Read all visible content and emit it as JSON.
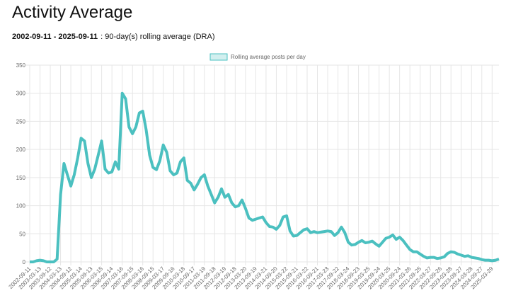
{
  "chart_data": {
    "type": "line",
    "title": "Activity Average",
    "subtitle": {
      "range": "2002-09-11 - 2025-09-11",
      "description": ": 90-day(s) rolling average (DRA)"
    },
    "categories": [
      "2002-09-11",
      null,
      null,
      "2003-03-13",
      null,
      null,
      "2003-09-12",
      null,
      null,
      "2004-03-13",
      null,
      null,
      "2004-09-12",
      null,
      null,
      "2005-03-14",
      null,
      null,
      "2005-09-13",
      null,
      null,
      "2006-03-15",
      null,
      null,
      "2006-09-14",
      null,
      null,
      "2007-03-16",
      null,
      null,
      "2007-09-15",
      null,
      null,
      "2008-03-16",
      null,
      null,
      "2008-09-15",
      null,
      null,
      "2009-03-17",
      null,
      null,
      "2009-09-16",
      null,
      null,
      "2010-03-18",
      null,
      null,
      "2010-09-17",
      null,
      null,
      "2011-03-19",
      null,
      null,
      "2011-09-18",
      null,
      null,
      "2012-03-19",
      null,
      null,
      "2012-09-18",
      null,
      null,
      "2013-03-20",
      null,
      null,
      "2013-09-19",
      null,
      null,
      "2014-03-21",
      null,
      null,
      "2014-09-20",
      null,
      null,
      "2015-03-22",
      null,
      null,
      "2015-09-21",
      null,
      null,
      "2016-03-22",
      null,
      null,
      "2016-09-21",
      null,
      null,
      "2017-03-23",
      null,
      null,
      "2017-09-22",
      null,
      null,
      "2018-03-24",
      null,
      null,
      "2018-09-23",
      null,
      null,
      "2019-03-25",
      null,
      null,
      "2019-09-24",
      null,
      null,
      "2020-03-25",
      null,
      null,
      "2020-09-24",
      null,
      null,
      "2021-03-26",
      null,
      null,
      "2021-09-25",
      null,
      null,
      "2022-03-27",
      null,
      null,
      "2022-09-26",
      null,
      null,
      "2023-03-28",
      null,
      null,
      "2023-09-27",
      null,
      null,
      "2024-03-28",
      null,
      null,
      "2024-09-27",
      null,
      null,
      "2025-03-29",
      null,
      null
    ],
    "series": [
      {
        "name": "Rolling average posts per day",
        "color": "#4bc0c0",
        "values": [
          0,
          0,
          2,
          3,
          2,
          0,
          0,
          0,
          5,
          120,
          175,
          155,
          135,
          155,
          185,
          220,
          215,
          175,
          150,
          165,
          190,
          215,
          165,
          158,
          160,
          178,
          165,
          300,
          290,
          240,
          228,
          240,
          265,
          268,
          235,
          190,
          168,
          164,
          180,
          208,
          195,
          162,
          155,
          158,
          178,
          185,
          145,
          140,
          128,
          138,
          150,
          155,
          135,
          120,
          105,
          115,
          130,
          115,
          120,
          105,
          98,
          100,
          110,
          95,
          78,
          74,
          76,
          78,
          80,
          70,
          63,
          62,
          58,
          65,
          80,
          82,
          55,
          46,
          47,
          52,
          57,
          59,
          52,
          54,
          52,
          53,
          54,
          55,
          54,
          47,
          52,
          62,
          52,
          35,
          30,
          31,
          35,
          38,
          34,
          35,
          37,
          32,
          28,
          35,
          42,
          44,
          48,
          40,
          44,
          38,
          30,
          22,
          18,
          18,
          14,
          10,
          7,
          8,
          8,
          6,
          7,
          9,
          15,
          18,
          17,
          14,
          12,
          10,
          11,
          8,
          7,
          6,
          4,
          3,
          3,
          2,
          3,
          5
        ]
      }
    ],
    "ylim": [
      0,
      350
    ],
    "yticks": [
      0,
      50,
      100,
      150,
      200,
      250,
      300,
      350
    ],
    "grid": true,
    "legend": "top"
  }
}
